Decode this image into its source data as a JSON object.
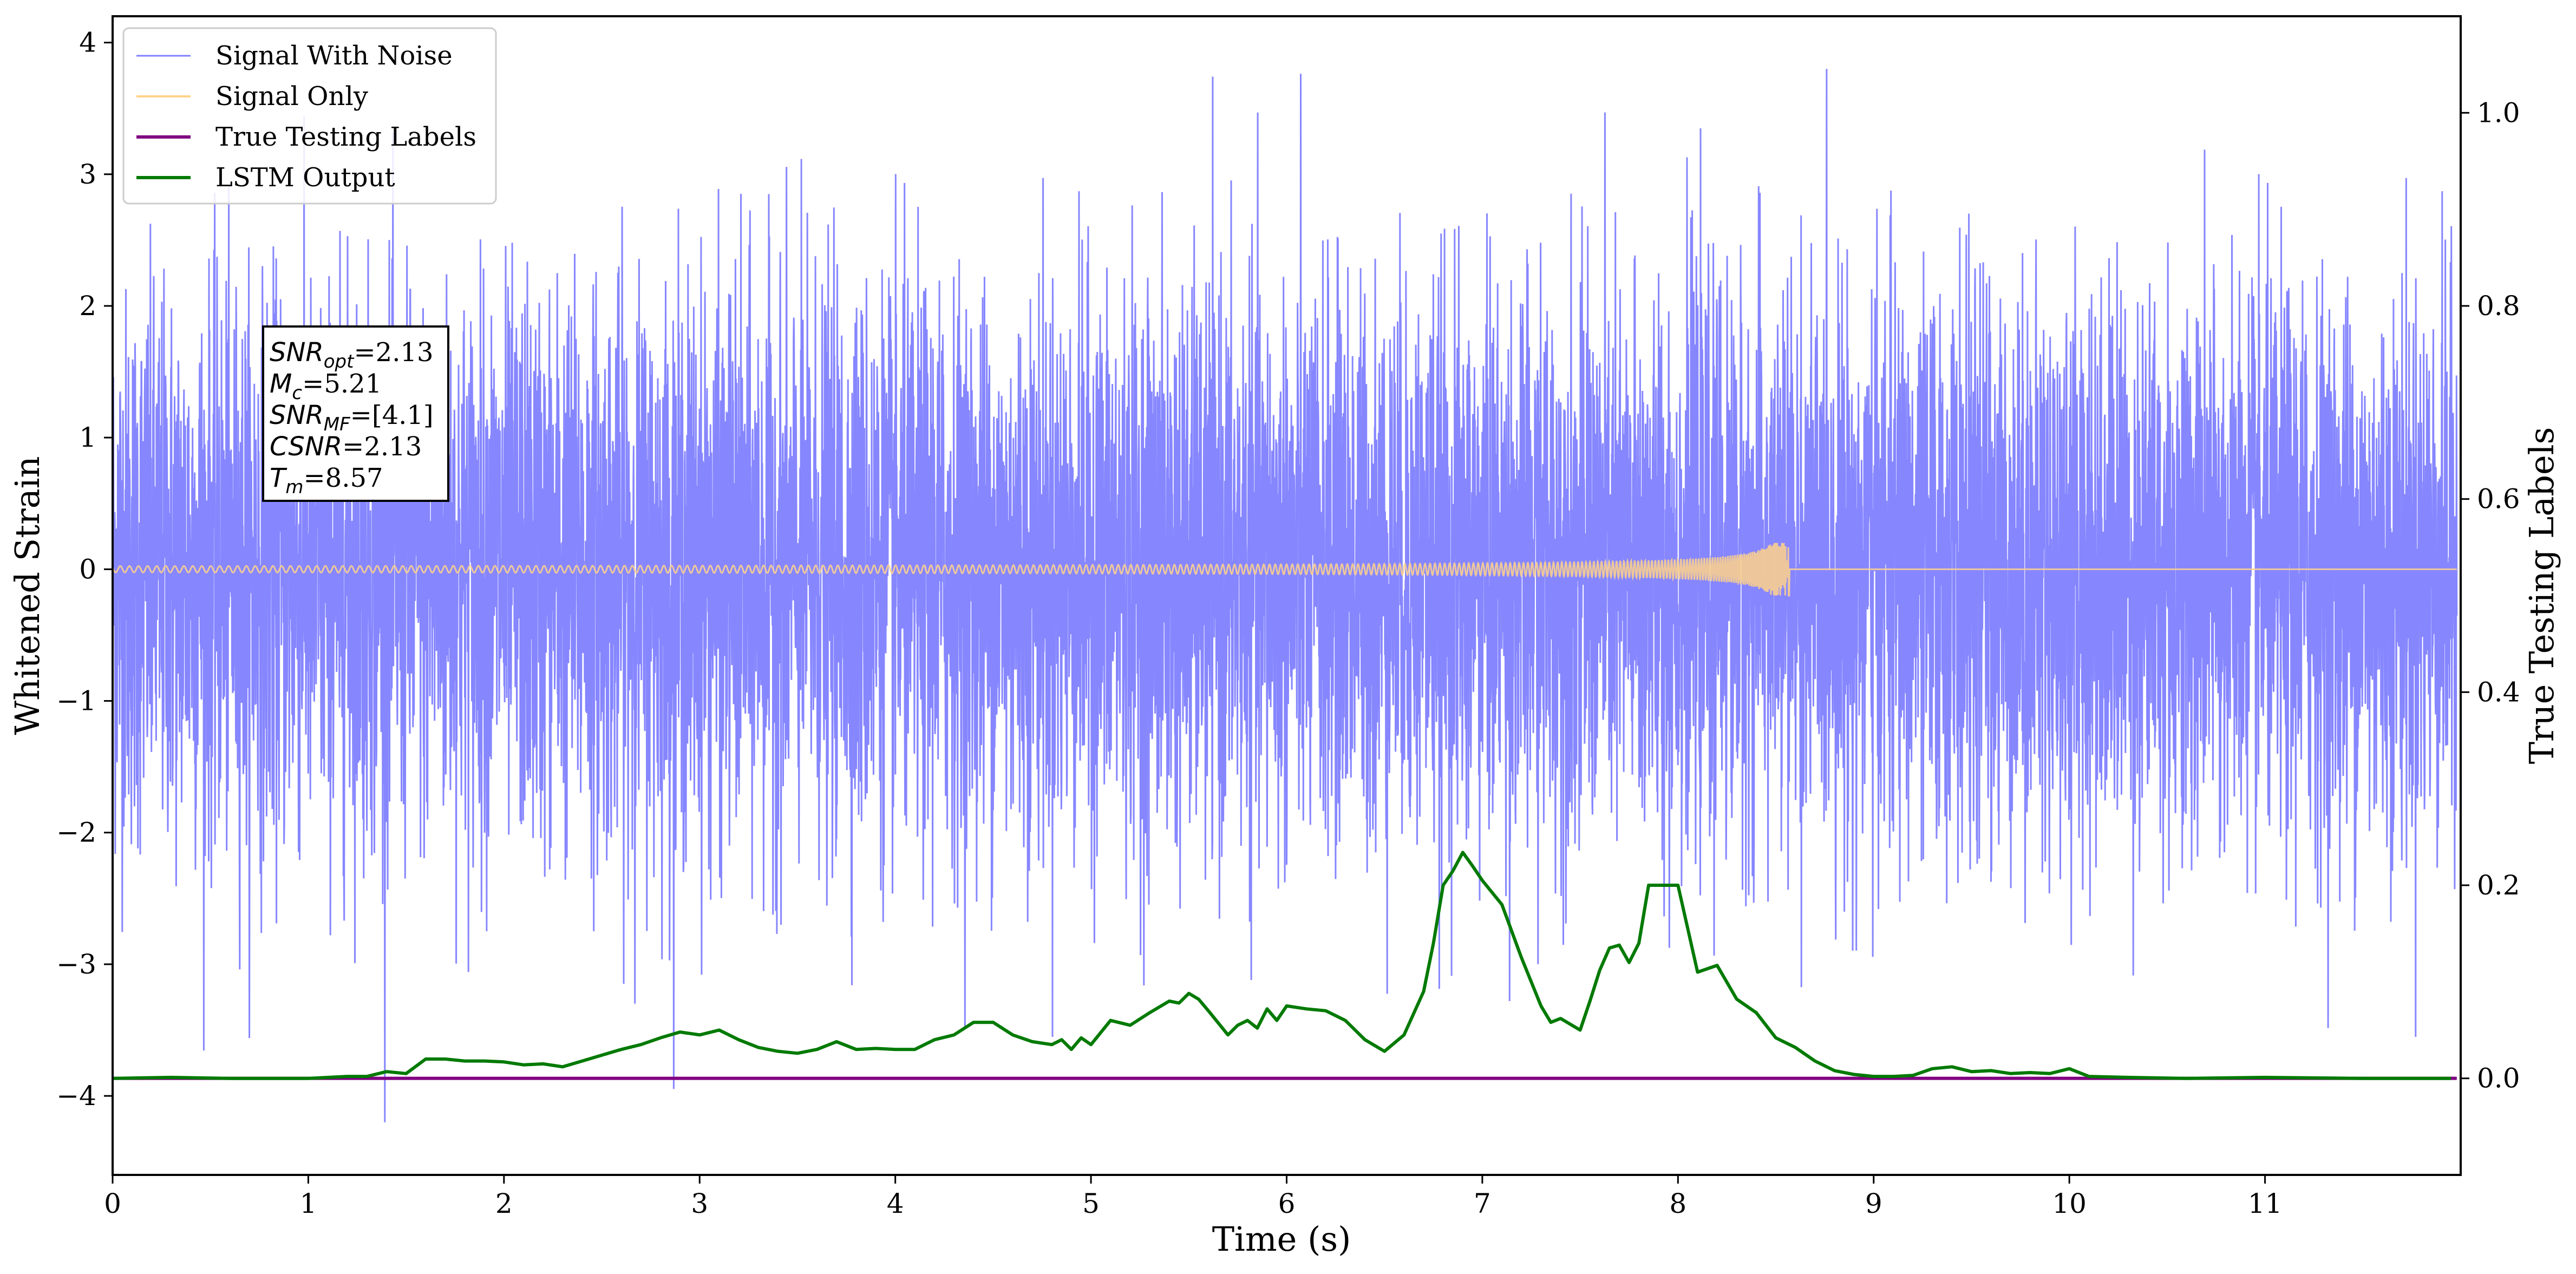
{
  "chart_data": {
    "type": "line",
    "xlabel": "Time (s)",
    "ylabel": "Whitened Strain",
    "ylabel_right": "True Testing Labels",
    "xlim": [
      0,
      12
    ],
    "ylim": [
      -4.6,
      4.2
    ],
    "ylim_right": [
      -0.1,
      1.1
    ],
    "x_ticks": [
      0,
      1,
      2,
      3,
      4,
      5,
      6,
      7,
      8,
      9,
      10,
      11
    ],
    "y_ticks": [
      -4,
      -3,
      -2,
      -1,
      0,
      1,
      2,
      3,
      4
    ],
    "y_ticks_right": [
      0.0,
      0.2,
      0.4,
      0.6,
      0.8,
      1.0
    ],
    "y_tick_labels": [
      "−4",
      "−3",
      "−2",
      "−1",
      "0",
      "1",
      "2",
      "3",
      "4"
    ],
    "y_tick_labels_right": [
      "0.0",
      "0.2",
      "0.4",
      "0.6",
      "0.8",
      "1.0"
    ],
    "x_tick_labels": [
      "0",
      "1",
      "2",
      "3",
      "4",
      "5",
      "6",
      "7",
      "8",
      "9",
      "10",
      "11"
    ],
    "grid": false,
    "legend_position": "top-left",
    "series": [
      {
        "name": "Signal With Noise",
        "color": "#7f7fff",
        "axis": "left",
        "noise_std": 1.0,
        "noise_range": [
          -4.2,
          3.8
        ]
      },
      {
        "name": "Signal Only",
        "color": "#ffd28a",
        "axis": "left",
        "merger_time": 8.57,
        "peak_amplitude": 0.2
      },
      {
        "name": "True Testing Labels",
        "color": "#800080",
        "axis": "right",
        "x": [
          0,
          12
        ],
        "values": [
          0,
          0
        ]
      },
      {
        "name": "LSTM Output",
        "color": "#007a00",
        "axis": "right",
        "x": [
          0,
          0.3,
          0.6,
          1.0,
          1.2,
          1.3,
          1.4,
          1.5,
          1.6,
          1.7,
          1.8,
          1.9,
          2.0,
          2.1,
          2.2,
          2.3,
          2.4,
          2.5,
          2.6,
          2.7,
          2.8,
          2.9,
          3.0,
          3.1,
          3.2,
          3.3,
          3.4,
          3.5,
          3.6,
          3.7,
          3.8,
          3.9,
          4.0,
          4.1,
          4.2,
          4.3,
          4.4,
          4.5,
          4.6,
          4.7,
          4.8,
          4.85,
          4.9,
          4.95,
          5.0,
          5.1,
          5.2,
          5.3,
          5.4,
          5.45,
          5.5,
          5.55,
          5.6,
          5.7,
          5.75,
          5.8,
          5.85,
          5.9,
          5.95,
          6.0,
          6.1,
          6.2,
          6.3,
          6.4,
          6.5,
          6.6,
          6.7,
          6.75,
          6.8,
          6.85,
          6.9,
          6.95,
          7.0,
          7.1,
          7.2,
          7.3,
          7.35,
          7.4,
          7.5,
          7.55,
          7.6,
          7.65,
          7.7,
          7.75,
          7.8,
          7.85,
          7.9,
          8.0,
          8.1,
          8.2,
          8.3,
          8.4,
          8.5,
          8.6,
          8.7,
          8.8,
          8.9,
          9.0,
          9.1,
          9.2,
          9.3,
          9.4,
          9.5,
          9.6,
          9.7,
          9.8,
          9.9,
          10.0,
          10.1,
          10.3,
          10.6,
          11.0,
          11.5,
          11.95
        ],
        "values": [
          0.0,
          0.001,
          0.0,
          0.0,
          0.002,
          0.002,
          0.007,
          0.005,
          0.02,
          0.02,
          0.018,
          0.018,
          0.017,
          0.014,
          0.015,
          0.012,
          0.018,
          0.024,
          0.03,
          0.035,
          0.042,
          0.048,
          0.045,
          0.05,
          0.04,
          0.032,
          0.028,
          0.026,
          0.03,
          0.038,
          0.03,
          0.031,
          0.03,
          0.03,
          0.04,
          0.045,
          0.058,
          0.058,
          0.045,
          0.038,
          0.035,
          0.04,
          0.03,
          0.042,
          0.035,
          0.06,
          0.055,
          0.068,
          0.08,
          0.078,
          0.088,
          0.082,
          0.07,
          0.045,
          0.055,
          0.06,
          0.052,
          0.072,
          0.06,
          0.075,
          0.072,
          0.07,
          0.06,
          0.04,
          0.028,
          0.045,
          0.09,
          0.14,
          0.2,
          0.215,
          0.234,
          0.22,
          0.205,
          0.18,
          0.125,
          0.075,
          0.058,
          0.062,
          0.05,
          0.08,
          0.112,
          0.135,
          0.138,
          0.12,
          0.14,
          0.2,
          0.2,
          0.2,
          0.11,
          0.117,
          0.082,
          0.068,
          0.042,
          0.032,
          0.018,
          0.008,
          0.004,
          0.002,
          0.002,
          0.003,
          0.01,
          0.012,
          0.007,
          0.008,
          0.005,
          0.006,
          0.005,
          0.01,
          0.002,
          0.001,
          0.0,
          0.001,
          0.0,
          0.0
        ]
      }
    ],
    "annotation": {
      "lines": [
        {
          "sym": "SNR",
          "sub": "opt",
          "val": "=2.13"
        },
        {
          "sym": "M",
          "sub": "c",
          "val": "=5.21"
        },
        {
          "sym": "SNR",
          "sub": "MF",
          "val": "=[4.1]"
        },
        {
          "sym": "CSNR",
          "sub": "",
          "val": "=2.13"
        },
        {
          "sym": "T",
          "sub": "m",
          "val": "=8.57"
        }
      ]
    }
  }
}
